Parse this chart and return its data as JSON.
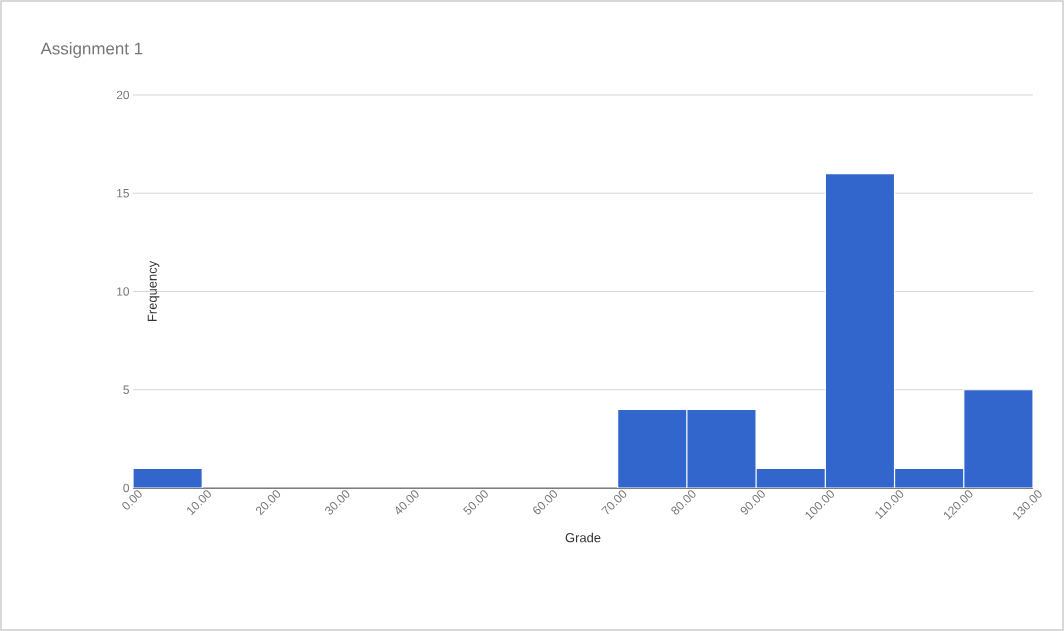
{
  "chart_data": {
    "type": "histogram",
    "title": "Assignment 1",
    "xlabel": "Grade",
    "ylabel": "Frequency",
    "color": "#3366cc",
    "bins": [
      0,
      10,
      20,
      30,
      40,
      50,
      60,
      70,
      80,
      90,
      100,
      110,
      120,
      130
    ],
    "values": [
      1,
      0,
      0,
      0,
      0,
      0,
      0,
      4,
      4,
      1,
      16,
      1,
      5
    ],
    "xlim": [
      0,
      130
    ],
    "xticks": [
      {
        "value": 0,
        "label": "0.00"
      },
      {
        "value": 10,
        "label": "10.00"
      },
      {
        "value": 20,
        "label": "20.00"
      },
      {
        "value": 30,
        "label": "30.00"
      },
      {
        "value": 40,
        "label": "40.00"
      },
      {
        "value": 50,
        "label": "50.00"
      },
      {
        "value": 60,
        "label": "60.00"
      },
      {
        "value": 70,
        "label": "70.00"
      },
      {
        "value": 80,
        "label": "80.00"
      },
      {
        "value": 90,
        "label": "90.00"
      },
      {
        "value": 100,
        "label": "100.00"
      },
      {
        "value": 110,
        "label": "110.00"
      },
      {
        "value": 120,
        "label": "120.00"
      },
      {
        "value": 130,
        "label": "130.00"
      }
    ],
    "ylim": [
      0,
      20
    ],
    "yticks": [
      0,
      5,
      10,
      15,
      20
    ],
    "grid": "y"
  }
}
